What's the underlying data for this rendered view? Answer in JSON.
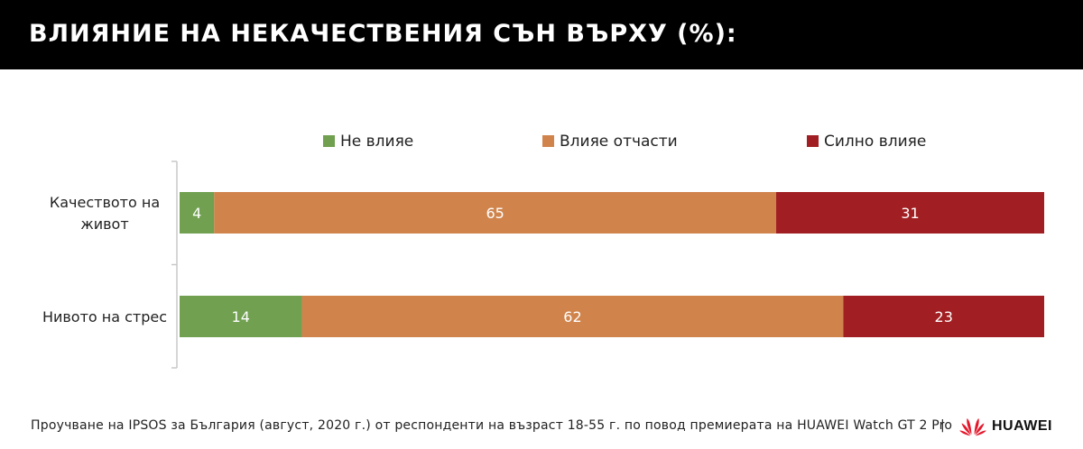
{
  "header": {
    "title": "ВЛИЯНИЕ НА НЕКАЧЕСТВЕНИЯ СЪН ВЪРХУ (%):"
  },
  "chart_data": {
    "type": "bar",
    "orientation": "horizontal",
    "stacked": true,
    "categories": [
      "Качеството на\nживот",
      "Нивото на стрес"
    ],
    "series": [
      {
        "name": "Не влияе",
        "values": [
          4,
          14
        ],
        "color": "#70a050"
      },
      {
        "name": "Влияе отчасти",
        "values": [
          65,
          62
        ],
        "color": "#d0844c"
      },
      {
        "name": "Силно влияе",
        "values": [
          31,
          23
        ],
        "color": "#a11f22"
      }
    ],
    "legend_position": "top",
    "grid": false
  },
  "footer": {
    "source": "Проучване на IPSOS за България (август, 2020 г.) от респонденти на възраст 18-55 г. по повод премиерата на HUAWEI Watch GT 2 Pro",
    "separator": "|",
    "brand": "HUAWEI",
    "brand_icon": "huawei-logo-icon",
    "brand_color": "#e4172b"
  }
}
